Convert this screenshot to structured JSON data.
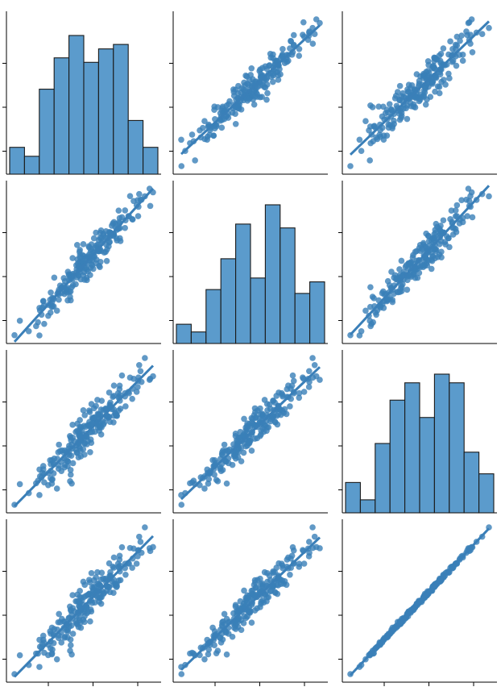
{
  "chart_data": {
    "type": "pairplot",
    "title": "",
    "variables_count": 4,
    "sample_size": 220,
    "colors": {
      "mark": "#3a7fb8",
      "bar": "#5b9bcc",
      "bar_edge": "#1a1a1a",
      "axis": "#000000"
    },
    "grid": false,
    "legend": "none",
    "correlation": [
      [
        1.0,
        0.985,
        0.95,
        0.95
      ],
      [
        0.985,
        1.0,
        0.985,
        0.985
      ],
      [
        0.95,
        0.985,
        1.0,
        0.998
      ],
      [
        0.95,
        0.985,
        0.998,
        1.0
      ]
    ],
    "panels": [
      {
        "row": 0,
        "col": 0,
        "kind": "histogram",
        "bins": 10,
        "counts": [
          6,
          4,
          19,
          26,
          31,
          25,
          28,
          29,
          12,
          6
        ]
      },
      {
        "row": 0,
        "col": 1,
        "kind": "scatter-regression"
      },
      {
        "row": 0,
        "col": 2,
        "kind": "scatter-regression"
      },
      {
        "row": 1,
        "col": 0,
        "kind": "scatter-regression"
      },
      {
        "row": 1,
        "col": 1,
        "kind": "histogram",
        "bins": 10,
        "counts": [
          5,
          3,
          14,
          22,
          31,
          17,
          36,
          30,
          13,
          16
        ]
      },
      {
        "row": 1,
        "col": 2,
        "kind": "scatter-regression"
      },
      {
        "row": 2,
        "col": 0,
        "kind": "scatter-regression"
      },
      {
        "row": 2,
        "col": 1,
        "kind": "scatter-regression"
      },
      {
        "row": 2,
        "col": 2,
        "kind": "histogram",
        "bins": 10,
        "counts": [
          7,
          3,
          16,
          26,
          30,
          22,
          32,
          30,
          14,
          9
        ]
      },
      {
        "row": 3,
        "col": 0,
        "kind": "scatter-regression"
      },
      {
        "row": 3,
        "col": 1,
        "kind": "scatter-regression"
      },
      {
        "row": 3,
        "col": 2,
        "kind": "scatter-regression"
      }
    ]
  }
}
